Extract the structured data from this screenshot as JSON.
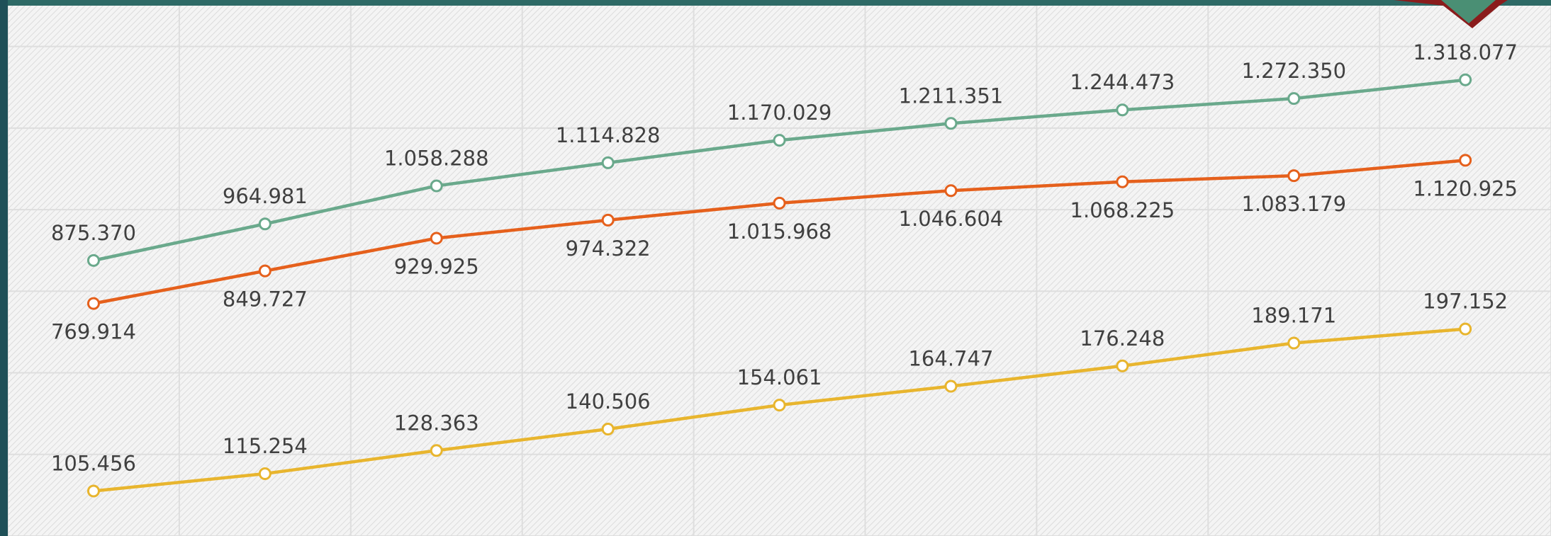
{
  "chart_data": {
    "type": "line",
    "categories": [
      null,
      null,
      null,
      null,
      null,
      null,
      null,
      null,
      null
    ],
    "series": [
      {
        "color": "#6aa98c",
        "values": [
          875370,
          964981,
          1058288,
          1114828,
          1170029,
          1211351,
          1244473,
          1272350,
          1318077
        ],
        "value_labels": [
          "875.370",
          "964.981",
          "1.058.288",
          "1.114.828",
          "1.170.029",
          "1.211.351",
          "1.244.473",
          "1.272.350",
          "1.318.077"
        ],
        "label_position": "above"
      },
      {
        "color": "#e5601c",
        "values": [
          769914,
          849727,
          929925,
          974322,
          1015968,
          1046604,
          1068225,
          1083179,
          1120925
        ],
        "value_labels": [
          "769.914",
          "849.727",
          "929.925",
          "974.322",
          "1.015.968",
          "1.046.604",
          "1.068.225",
          "1.083.179",
          "1.120.925"
        ],
        "label_position": "below"
      },
      {
        "color": "#e8b52e",
        "axis": "y2",
        "values": [
          105456,
          115254,
          128363,
          140506,
          154061,
          164747,
          176248,
          189171,
          197152
        ],
        "value_labels": [
          "105.456",
          "115.254",
          "128.363",
          "140.506",
          "154.061",
          "164.747",
          "176.248",
          "189.171",
          "197.152"
        ],
        "label_position": "above"
      }
    ],
    "ylim": [
      200000,
      1400000
    ],
    "yticks": [
      200000,
      400000,
      600000,
      800000,
      1000000,
      1200000,
      1400000
    ],
    "y2lim": [
      80000,
      357000
    ],
    "grid": true
  }
}
